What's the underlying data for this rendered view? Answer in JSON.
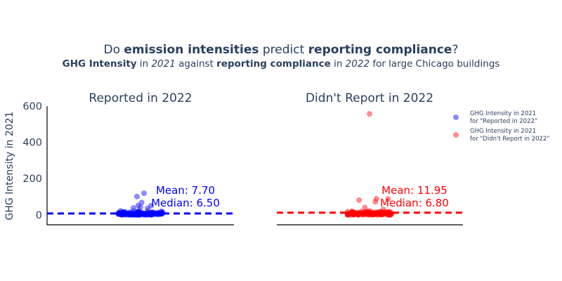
{
  "title": {
    "parts": [
      {
        "text": "Do ",
        "style": "normal"
      },
      {
        "text": "emission intensities",
        "style": "bold"
      },
      {
        "text": " predict ",
        "style": "normal"
      },
      {
        "text": "reporting compliance",
        "style": "bold"
      },
      {
        "text": "?",
        "style": "normal"
      }
    ]
  },
  "subtitle": {
    "parts": [
      {
        "text": "GHG Intensity",
        "style": "bold"
      },
      {
        "text": " in ",
        "style": "normal"
      },
      {
        "text": "2021",
        "style": "italic"
      },
      {
        "text": " against ",
        "style": "normal"
      },
      {
        "text": "reporting compliance",
        "style": "bold"
      },
      {
        "text": " in ",
        "style": "normal"
      },
      {
        "text": "2022",
        "style": "italic"
      },
      {
        "text": " for large Chicago buildings",
        "style": "normal"
      }
    ]
  },
  "chart_data": {
    "type": "scatter",
    "ylabel": "GHG Intensity in 2021",
    "ylim": [
      -55,
      600
    ],
    "yticks": [
      0,
      200,
      400,
      600
    ],
    "grid": false,
    "legend_position": "top-right",
    "panels": [
      {
        "title": "Reported in 2022",
        "color": "#0000ff",
        "mean": 7.7,
        "median": 6.5,
        "mean_label": "Mean: 7.70",
        "median_label": "Median: 6.50",
        "legend_label": [
          "GHG Intensity in 2021",
          "for \"Reported in 2022\""
        ],
        "outliers": [
          {
            "x": -0.15,
            "y": 101
          },
          {
            "x": 0.15,
            "y": 119
          },
          {
            "x": 0.05,
            "y": 68
          },
          {
            "x": -0.1,
            "y": 52
          },
          {
            "x": 0.45,
            "y": 50
          },
          {
            "x": -0.3,
            "y": 38
          },
          {
            "x": 0.3,
            "y": 36
          },
          {
            "x": 0.0,
            "y": 42
          }
        ]
      },
      {
        "title": "Didn't Report in 2022",
        "color": "#ff0000",
        "mean": 11.95,
        "median": 6.8,
        "mean_label": "Mean: 11.95",
        "median_label": "Median: 6.80",
        "legend_label": [
          "GHG Intensity in 2021",
          "for \"Didn't Report in 2022\""
        ],
        "outliers": [
          {
            "x": 0.0,
            "y": 557
          },
          {
            "x": -0.45,
            "y": 81
          },
          {
            "x": 0.3,
            "y": 89
          },
          {
            "x": 0.25,
            "y": 72
          },
          {
            "x": 0.8,
            "y": 88
          },
          {
            "x": -0.2,
            "y": 40
          },
          {
            "x": 0.6,
            "y": 30
          }
        ]
      }
    ]
  }
}
